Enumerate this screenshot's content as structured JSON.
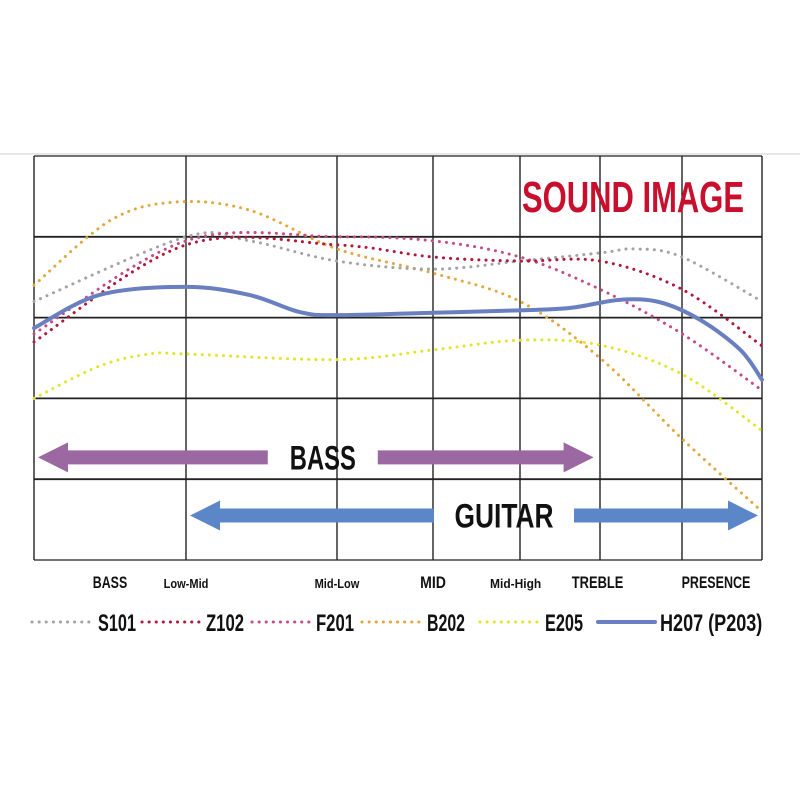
{
  "chart_data": {
    "type": "line",
    "title": "SOUND IMAGE",
    "title_color": "#c8102e",
    "grid": true,
    "x_range": [
      0,
      7
    ],
    "y_range": [
      0,
      5
    ],
    "x_tick_labels": [
      {
        "label": "BASS",
        "x": 0.5,
        "size": "large"
      },
      {
        "label": "Low-Mid",
        "x": 1,
        "size": "small"
      },
      {
        "label": "Mid-Low",
        "x": 2,
        "size": "small"
      },
      {
        "label": "MID",
        "x": 3,
        "size": "large"
      },
      {
        "label": "Mid-High",
        "x": 3.95,
        "size": "small"
      },
      {
        "label": "TREBLE",
        "x": 4.97,
        "size": "large"
      },
      {
        "label": "PRESENCE",
        "x": 6.5,
        "size": "large"
      }
    ],
    "legend_position": "bottom",
    "series": [
      {
        "name": "S101",
        "color": "#a3a3a3",
        "style": "dotted",
        "points": [
          [
            0,
            3.2
          ],
          [
            1,
            4.0
          ],
          [
            1.42,
            3.95
          ],
          [
            2,
            3.7
          ],
          [
            3,
            3.6
          ],
          [
            4,
            3.7
          ],
          [
            5,
            3.8
          ],
          [
            5.43,
            3.85
          ],
          [
            6,
            3.75
          ],
          [
            7,
            3.2
          ]
        ]
      },
      {
        "name": "Z102",
        "color": "#b0183a",
        "style": "dotted",
        "points": [
          [
            0,
            2.7
          ],
          [
            1,
            3.9
          ],
          [
            2,
            3.9
          ],
          [
            3,
            3.75
          ],
          [
            4,
            3.7
          ],
          [
            5,
            3.7
          ],
          [
            6,
            3.35
          ],
          [
            7,
            2.65
          ]
        ]
      },
      {
        "name": "F201",
        "color": "#c44a8a",
        "style": "dotted",
        "points": [
          [
            0,
            2.8
          ],
          [
            1,
            3.95
          ],
          [
            2,
            4.0
          ],
          [
            3,
            3.95
          ],
          [
            4,
            3.75
          ],
          [
            5,
            3.35
          ],
          [
            6,
            2.8
          ],
          [
            7,
            2.1
          ]
        ]
      },
      {
        "name": "B202",
        "color": "#e2a83c",
        "style": "dotted",
        "points": [
          [
            0,
            3.4
          ],
          [
            0.5,
            4.2
          ],
          [
            0.93,
            4.43
          ],
          [
            1.42,
            4.33
          ],
          [
            2,
            3.85
          ],
          [
            3,
            3.55
          ],
          [
            4,
            3.2
          ],
          [
            5,
            2.5
          ],
          [
            6,
            1.5
          ],
          [
            7,
            0.6
          ]
        ]
      },
      {
        "name": "E205",
        "color": "#e4e42c",
        "style": "dotted",
        "points": [
          [
            0,
            2.0
          ],
          [
            0.43,
            2.4
          ],
          [
            0.76,
            2.55
          ],
          [
            1,
            2.55
          ],
          [
            2,
            2.48
          ],
          [
            3,
            2.6
          ],
          [
            4,
            2.72
          ],
          [
            5,
            2.66
          ],
          [
            6,
            2.3
          ],
          [
            7,
            1.6
          ]
        ]
      },
      {
        "name": "H207 (P203)",
        "color": "#6a7fc0",
        "style": "solid",
        "points": [
          [
            0,
            2.87
          ],
          [
            0.43,
            3.28
          ],
          [
            1,
            3.38
          ],
          [
            1.42,
            3.28
          ],
          [
            1.75,
            3.07
          ],
          [
            2,
            3.03
          ],
          [
            3,
            3.06
          ],
          [
            4,
            3.09
          ],
          [
            4.63,
            3.12
          ],
          [
            5.24,
            3.22
          ],
          [
            5.73,
            3.19
          ],
          [
            6.23,
            2.97
          ],
          [
            6.73,
            2.6
          ],
          [
            7,
            2.23
          ]
        ]
      }
    ],
    "ranges": [
      {
        "label": "BASS",
        "from": 0,
        "to": 4.97,
        "level": 1.27,
        "color": "#9c68a2"
      },
      {
        "label": "GUITAR",
        "from": 1,
        "to": 7,
        "level": 0.55,
        "color": "#5b87c9"
      }
    ]
  }
}
